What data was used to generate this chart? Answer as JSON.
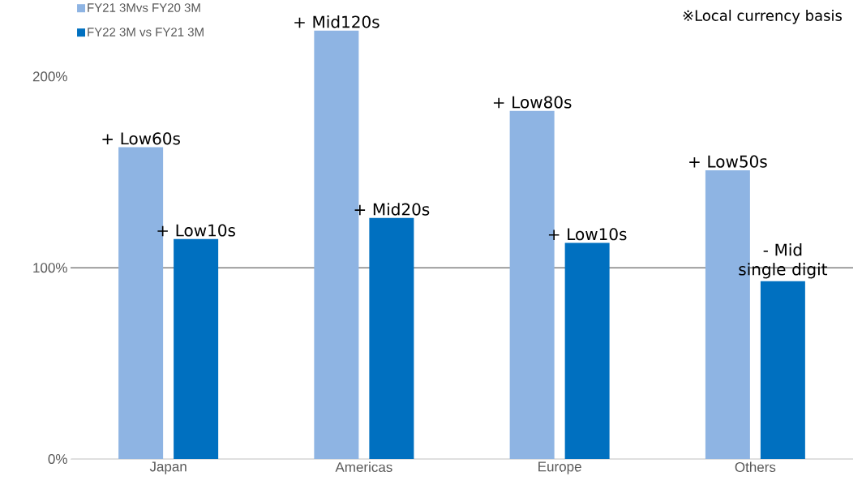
{
  "chart_data": {
    "type": "bar",
    "categories": [
      "Japan",
      "Americas",
      "Europe",
      "Others"
    ],
    "series": [
      {
        "name": "FY21 3Mvs FY20 3M",
        "color": "#8eb4e3",
        "values": [
          163,
          224,
          182,
          151
        ],
        "value_labels": [
          "+ Low60s",
          "+ Mid120s",
          "+ Low80s",
          "+ Low50s"
        ]
      },
      {
        "name": "FY22 3M vs FY21 3M",
        "color": "#0070c0",
        "values": [
          115,
          126,
          113,
          93
        ],
        "value_labels": [
          "+ Low10s",
          "+ Mid20s",
          "+ Low10s",
          "- Mid single digit"
        ]
      }
    ],
    "ylim": [
      0,
      240
    ],
    "yticks": [
      {
        "value": 0,
        "label": "0%"
      },
      {
        "value": 100,
        "label": "100%"
      },
      {
        "value": 200,
        "label": "200%"
      }
    ],
    "ref_lines": [
      {
        "axis": "y",
        "value": 100,
        "color": "#808080"
      }
    ],
    "annotations": [
      "※Local currency basis"
    ],
    "legend": "top left"
  }
}
